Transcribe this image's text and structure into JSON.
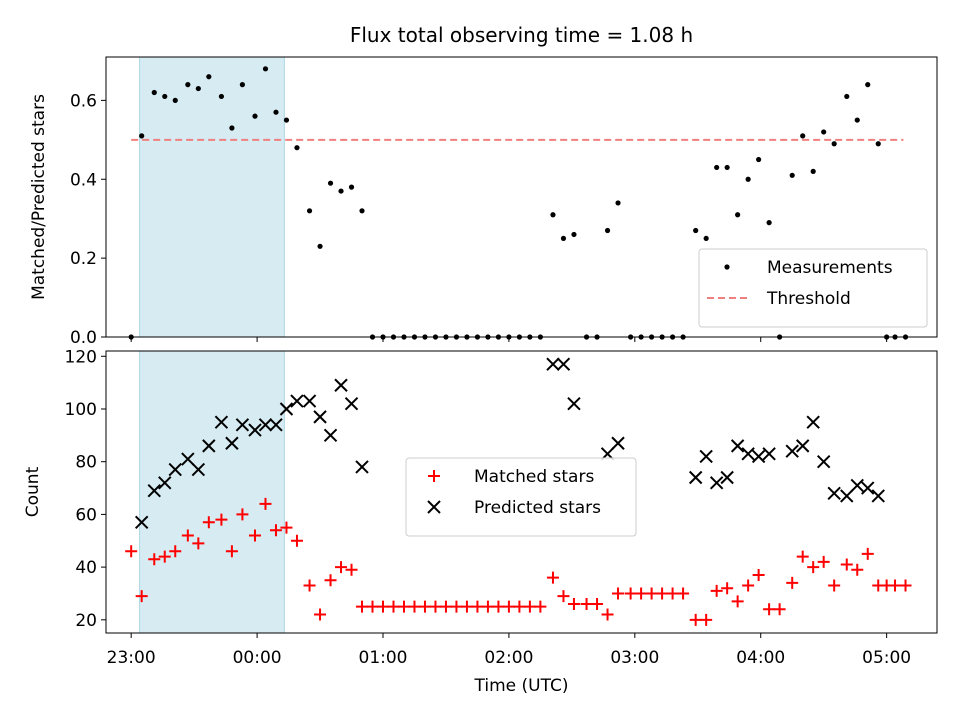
{
  "chart_data": {
    "type": "scatter",
    "title": "Flux total observing time = 1.08 h",
    "xlabel": "Time (UTC)",
    "x_ticks": [
      "23:00",
      "00:00",
      "01:00",
      "02:00",
      "03:00",
      "04:00",
      "05:00"
    ],
    "x_range": [
      "22:48",
      "05:24"
    ],
    "shaded_interval": [
      "23:04",
      "00:13"
    ],
    "shade_color": "#add8e6",
    "panels": [
      {
        "ylabel": "Matched/Predicted stars",
        "ylim": [
          0,
          0.71
        ],
        "yticks": [
          0.0,
          0.2,
          0.4,
          0.6
        ],
        "legend": "lower right",
        "threshold": {
          "name": "Threshold",
          "value": 0.5,
          "x_range": [
            "23:00",
            "05:08"
          ],
          "color": "#f08080",
          "style": "dashed"
        },
        "series": [
          {
            "name": "Measurements",
            "marker": "dot",
            "color": "#000000",
            "points": [
              [
                "23:00",
                0.0
              ],
              [
                "23:05",
                0.51
              ],
              [
                "23:11",
                0.62
              ],
              [
                "23:16",
                0.61
              ],
              [
                "23:21",
                0.6
              ],
              [
                "23:27",
                0.64
              ],
              [
                "23:32",
                0.63
              ],
              [
                "23:37",
                0.66
              ],
              [
                "23:43",
                0.61
              ],
              [
                "23:48",
                0.53
              ],
              [
                "23:53",
                0.64
              ],
              [
                "23:59",
                0.56
              ],
              [
                "00:04",
                0.68
              ],
              [
                "00:09",
                0.57
              ],
              [
                "00:14",
                0.55
              ],
              [
                "00:19",
                0.48
              ],
              [
                "00:25",
                0.32
              ],
              [
                "00:30",
                0.23
              ],
              [
                "00:35",
                0.39
              ],
              [
                "00:40",
                0.37
              ],
              [
                "00:45",
                0.38
              ],
              [
                "00:50",
                0.32
              ],
              [
                "00:55",
                0.0
              ],
              [
                "01:00",
                0.0
              ],
              [
                "01:05",
                0.0
              ],
              [
                "01:10",
                0.0
              ],
              [
                "01:15",
                0.0
              ],
              [
                "01:20",
                0.0
              ],
              [
                "01:25",
                0.0
              ],
              [
                "01:30",
                0.0
              ],
              [
                "01:35",
                0.0
              ],
              [
                "01:40",
                0.0
              ],
              [
                "01:45",
                0.0
              ],
              [
                "01:50",
                0.0
              ],
              [
                "01:55",
                0.0
              ],
              [
                "02:00",
                0.0
              ],
              [
                "02:05",
                0.0
              ],
              [
                "02:10",
                0.0
              ],
              [
                "02:15",
                0.0
              ],
              [
                "02:21",
                0.31
              ],
              [
                "02:26",
                0.25
              ],
              [
                "02:31",
                0.26
              ],
              [
                "02:37",
                0.0
              ],
              [
                "02:42",
                0.0
              ],
              [
                "02:47",
                0.27
              ],
              [
                "02:52",
                0.34
              ],
              [
                "02:58",
                0.0
              ],
              [
                "03:03",
                0.0
              ],
              [
                "03:08",
                0.0
              ],
              [
                "03:13",
                0.0
              ],
              [
                "03:18",
                0.0
              ],
              [
                "03:23",
                0.0
              ],
              [
                "03:29",
                0.27
              ],
              [
                "03:34",
                0.25
              ],
              [
                "03:39",
                0.43
              ],
              [
                "03:44",
                0.43
              ],
              [
                "03:49",
                0.31
              ],
              [
                "03:54",
                0.4
              ],
              [
                "03:59",
                0.45
              ],
              [
                "04:04",
                0.29
              ],
              [
                "04:09",
                0.0
              ],
              [
                "04:15",
                0.41
              ],
              [
                "04:20",
                0.51
              ],
              [
                "04:25",
                0.42
              ],
              [
                "04:30",
                0.52
              ],
              [
                "04:35",
                0.49
              ],
              [
                "04:41",
                0.61
              ],
              [
                "04:46",
                0.55
              ],
              [
                "04:51",
                0.64
              ],
              [
                "04:56",
                0.49
              ],
              [
                "05:00",
                0.0
              ],
              [
                "05:04",
                0.0
              ],
              [
                "05:09",
                0.0
              ]
            ]
          }
        ]
      },
      {
        "ylabel": "Count",
        "ylim": [
          15,
          122
        ],
        "yticks": [
          20,
          40,
          60,
          80,
          100,
          120
        ],
        "legend": "center",
        "series": [
          {
            "name": "Matched stars",
            "marker": "plus",
            "color": "#ff0000",
            "points": [
              [
                "23:00",
                46
              ],
              [
                "23:05",
                29
              ],
              [
                "23:11",
                43
              ],
              [
                "23:16",
                44
              ],
              [
                "23:21",
                46
              ],
              [
                "23:27",
                52
              ],
              [
                "23:32",
                49
              ],
              [
                "23:37",
                57
              ],
              [
                "23:43",
                58
              ],
              [
                "23:48",
                46
              ],
              [
                "23:53",
                60
              ],
              [
                "23:59",
                52
              ],
              [
                "00:04",
                64
              ],
              [
                "00:09",
                54
              ],
              [
                "00:14",
                55
              ],
              [
                "00:19",
                50
              ],
              [
                "00:25",
                33
              ],
              [
                "00:30",
                22
              ],
              [
                "00:35",
                35
              ],
              [
                "00:40",
                40
              ],
              [
                "00:45",
                39
              ],
              [
                "00:50",
                25
              ],
              [
                "00:55",
                25
              ],
              [
                "01:00",
                25
              ],
              [
                "01:05",
                25
              ],
              [
                "01:10",
                25
              ],
              [
                "01:15",
                25
              ],
              [
                "01:20",
                25
              ],
              [
                "01:25",
                25
              ],
              [
                "01:30",
                25
              ],
              [
                "01:35",
                25
              ],
              [
                "01:40",
                25
              ],
              [
                "01:45",
                25
              ],
              [
                "01:50",
                25
              ],
              [
                "01:55",
                25
              ],
              [
                "02:00",
                25
              ],
              [
                "02:05",
                25
              ],
              [
                "02:10",
                25
              ],
              [
                "02:15",
                25
              ],
              [
                "02:21",
                36
              ],
              [
                "02:26",
                29
              ],
              [
                "02:31",
                26
              ],
              [
                "02:37",
                26
              ],
              [
                "02:42",
                26
              ],
              [
                "02:47",
                22
              ],
              [
                "02:52",
                30
              ],
              [
                "02:58",
                30
              ],
              [
                "03:03",
                30
              ],
              [
                "03:08",
                30
              ],
              [
                "03:13",
                30
              ],
              [
                "03:18",
                30
              ],
              [
                "03:23",
                30
              ],
              [
                "03:29",
                20
              ],
              [
                "03:34",
                20
              ],
              [
                "03:39",
                31
              ],
              [
                "03:44",
                32
              ],
              [
                "03:49",
                27
              ],
              [
                "03:54",
                33
              ],
              [
                "03:59",
                37
              ],
              [
                "04:04",
                24
              ],
              [
                "04:09",
                24
              ],
              [
                "04:15",
                34
              ],
              [
                "04:20",
                44
              ],
              [
                "04:25",
                40
              ],
              [
                "04:30",
                42
              ],
              [
                "04:35",
                33
              ],
              [
                "04:41",
                41
              ],
              [
                "04:46",
                39
              ],
              [
                "04:51",
                45
              ],
              [
                "04:56",
                33
              ],
              [
                "05:00",
                33
              ],
              [
                "05:04",
                33
              ],
              [
                "05:09",
                33
              ]
            ]
          },
          {
            "name": "Predicted stars",
            "marker": "x",
            "color": "#000000",
            "points": [
              [
                "23:05",
                57
              ],
              [
                "23:11",
                69
              ],
              [
                "23:16",
                72
              ],
              [
                "23:21",
                77
              ],
              [
                "23:27",
                81
              ],
              [
                "23:32",
                77
              ],
              [
                "23:37",
                86
              ],
              [
                "23:43",
                95
              ],
              [
                "23:48",
                87
              ],
              [
                "23:53",
                94
              ],
              [
                "23:59",
                92
              ],
              [
                "00:04",
                94
              ],
              [
                "00:09",
                94
              ],
              [
                "00:14",
                100
              ],
              [
                "00:19",
                103
              ],
              [
                "00:25",
                103
              ],
              [
                "00:30",
                97
              ],
              [
                "00:35",
                90
              ],
              [
                "00:40",
                109
              ],
              [
                "00:45",
                102
              ],
              [
                "00:50",
                78
              ],
              [
                "02:21",
                117
              ],
              [
                "02:26",
                117
              ],
              [
                "02:31",
                102
              ],
              [
                "02:47",
                83
              ],
              [
                "02:52",
                87
              ],
              [
                "03:29",
                74
              ],
              [
                "03:34",
                82
              ],
              [
                "03:39",
                72
              ],
              [
                "03:44",
                74
              ],
              [
                "03:49",
                86
              ],
              [
                "03:54",
                83
              ],
              [
                "03:59",
                82
              ],
              [
                "04:04",
                83
              ],
              [
                "04:15",
                84
              ],
              [
                "04:20",
                86
              ],
              [
                "04:25",
                95
              ],
              [
                "04:30",
                80
              ],
              [
                "04:35",
                68
              ],
              [
                "04:41",
                67
              ],
              [
                "04:46",
                71
              ],
              [
                "04:51",
                70
              ],
              [
                "04:56",
                67
              ]
            ]
          }
        ]
      }
    ]
  }
}
